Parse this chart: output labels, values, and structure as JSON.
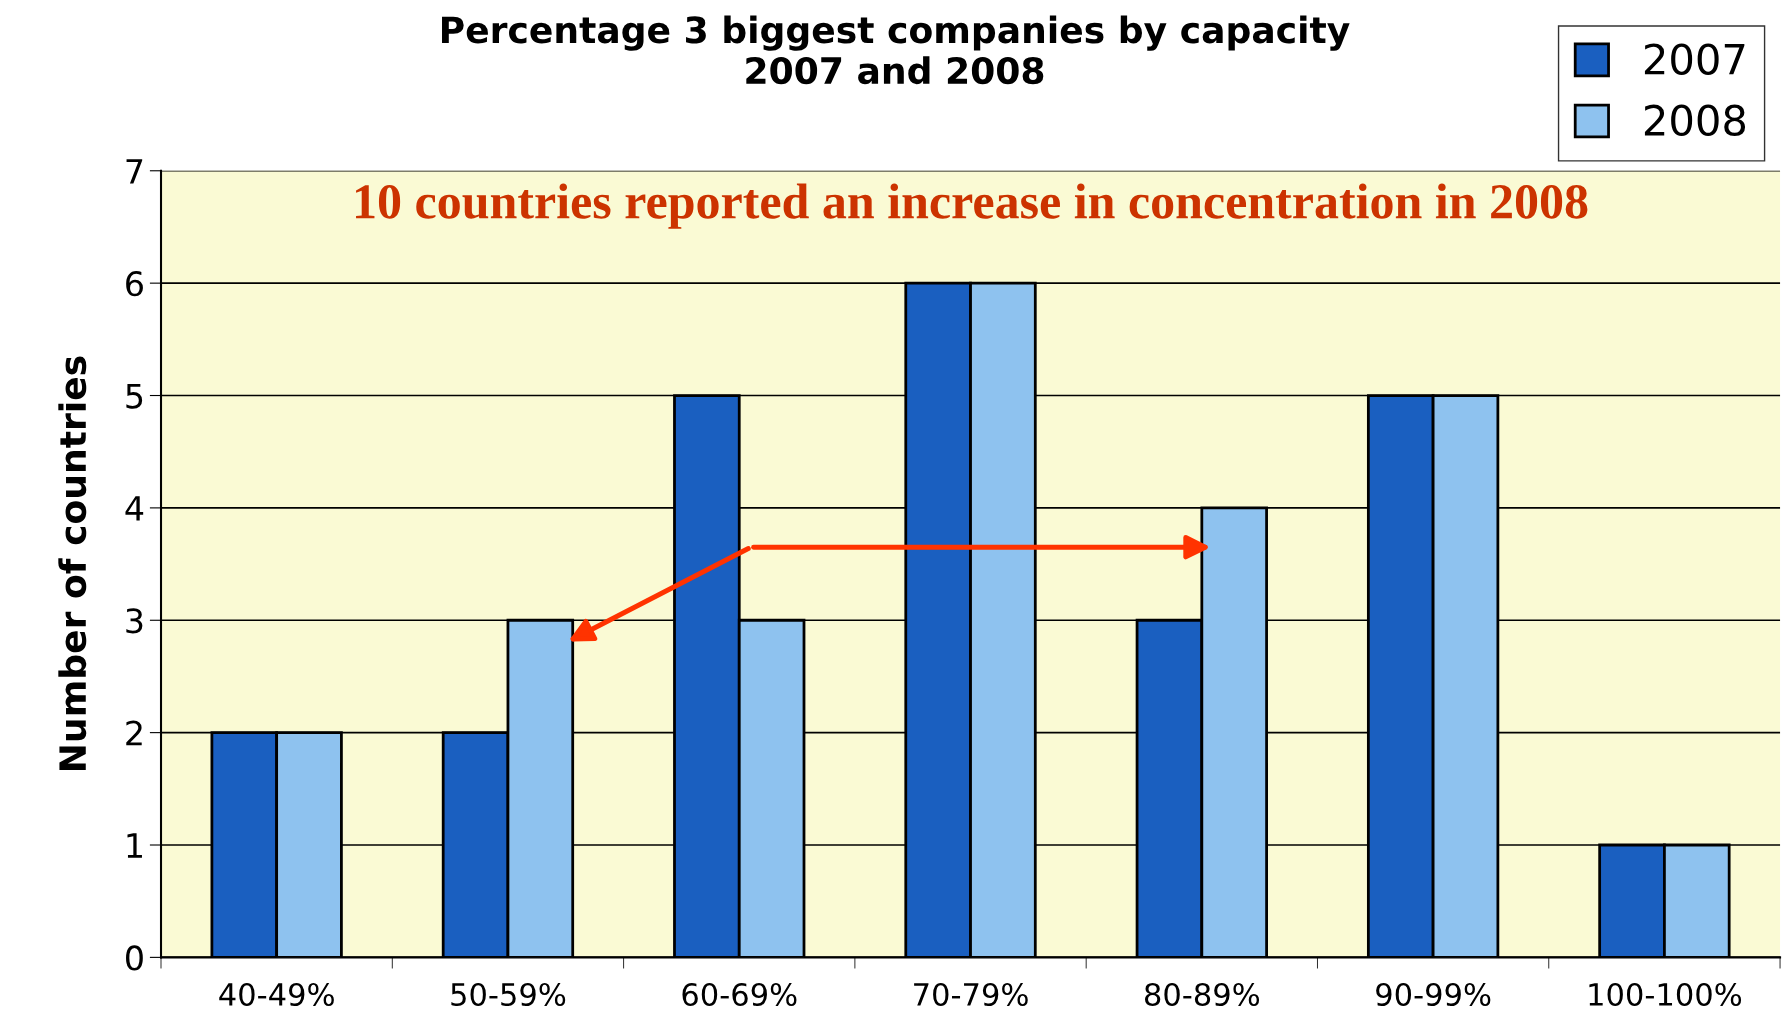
{
  "chart_data": {
    "type": "bar",
    "title": "Percentage 3 biggest companies by capacity\n2007 and 2008",
    "ylabel": "Number of countries",
    "categories": [
      "40-49%",
      "50-59%",
      "60-69%",
      "70-79%",
      "80-89%",
      "90-99%",
      "100-100%"
    ],
    "series": [
      {
        "name": "2007",
        "color": "#1a5fc0",
        "values": [
          2,
          2,
          5,
          6,
          3,
          5,
          1
        ]
      },
      {
        "name": "2008",
        "color": "#8ec2ef",
        "values": [
          2,
          3,
          3,
          6,
          4,
          5,
          1
        ]
      }
    ],
    "ylim": [
      0,
      7
    ],
    "yticks": [
      0,
      1,
      2,
      3,
      4,
      5,
      6,
      7
    ],
    "grid": "y",
    "legend": "top right",
    "annotations": [
      "10 countries reported an increase in concentration in 2008"
    ]
  }
}
